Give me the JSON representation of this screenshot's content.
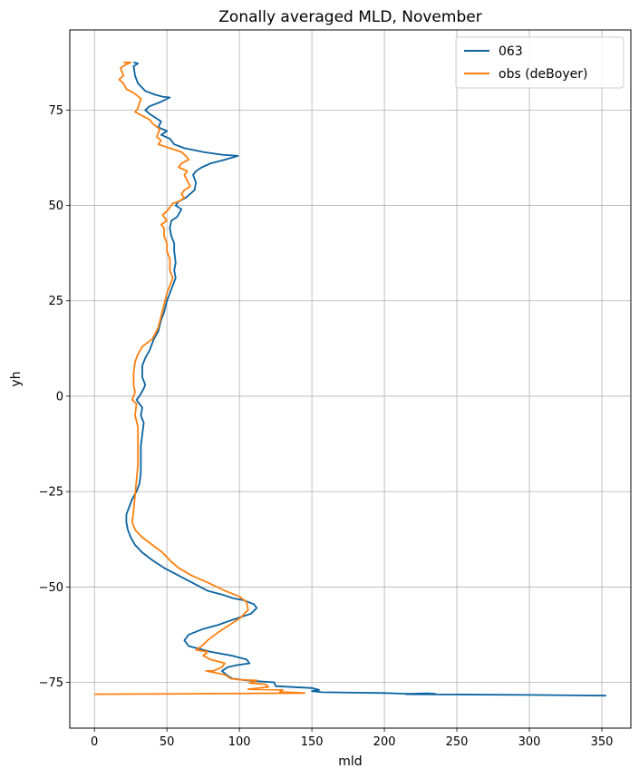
{
  "chart_data": {
    "type": "line",
    "title": "Zonally averaged MLD, November",
    "xlabel": "mld",
    "ylabel": "yh",
    "xlim": [
      -17,
      370
    ],
    "ylim": [
      -87,
      96
    ],
    "xticks": [
      0,
      50,
      100,
      150,
      200,
      250,
      300,
      350
    ],
    "yticks": [
      -75,
      -50,
      -25,
      0,
      25,
      50,
      75
    ],
    "grid": true,
    "legend_position": "top-right",
    "colors": {
      "063": "#0a63a0",
      "obs": "#ff7f0e"
    },
    "series": [
      {
        "name": "063",
        "color": "#0a63a0",
        "points": [
          [
            27,
            87.5
          ],
          [
            30,
            87.2
          ],
          [
            27,
            86.5
          ],
          [
            28,
            84
          ],
          [
            30,
            82
          ],
          [
            35,
            80
          ],
          [
            42,
            79
          ],
          [
            47,
            78.5
          ],
          [
            52,
            78.3
          ],
          [
            45,
            77
          ],
          [
            38,
            76
          ],
          [
            35,
            75
          ],
          [
            38,
            74
          ],
          [
            42,
            73
          ],
          [
            46,
            72
          ],
          [
            44,
            70.5
          ],
          [
            50,
            69.5
          ],
          [
            46,
            68.5
          ],
          [
            52,
            67.5
          ],
          [
            55,
            66
          ],
          [
            62,
            65
          ],
          [
            75,
            64
          ],
          [
            88,
            63.3
          ],
          [
            99,
            63
          ],
          [
            90,
            62
          ],
          [
            80,
            61
          ],
          [
            74,
            60
          ],
          [
            70,
            59
          ],
          [
            68,
            58
          ],
          [
            70,
            56
          ],
          [
            69,
            54
          ],
          [
            63,
            52
          ],
          [
            58,
            51
          ],
          [
            56,
            50
          ],
          [
            60,
            49
          ],
          [
            57,
            47
          ],
          [
            53,
            46
          ],
          [
            52,
            44
          ],
          [
            53,
            42
          ],
          [
            55,
            40
          ],
          [
            55,
            38
          ],
          [
            56,
            35
          ],
          [
            55,
            33
          ],
          [
            56,
            31
          ],
          [
            54,
            29
          ],
          [
            52,
            27
          ],
          [
            50,
            25
          ],
          [
            48,
            22
          ],
          [
            46,
            20
          ],
          [
            44,
            17
          ],
          [
            41,
            15
          ],
          [
            38,
            12
          ],
          [
            35,
            10
          ],
          [
            33,
            8
          ],
          [
            33,
            5
          ],
          [
            35,
            3
          ],
          [
            34,
            2
          ],
          [
            31,
            0
          ],
          [
            29,
            -1
          ],
          [
            33,
            -3
          ],
          [
            32,
            -5
          ],
          [
            34,
            -7
          ],
          [
            33,
            -10
          ],
          [
            32,
            -13
          ],
          [
            32,
            -16
          ],
          [
            32,
            -20
          ],
          [
            31,
            -23
          ],
          [
            29,
            -25
          ],
          [
            26,
            -27
          ],
          [
            24,
            -29
          ],
          [
            22,
            -31
          ],
          [
            22,
            -33
          ],
          [
            23,
            -35
          ],
          [
            25,
            -37
          ],
          [
            28,
            -39
          ],
          [
            33,
            -41
          ],
          [
            40,
            -43
          ],
          [
            48,
            -45
          ],
          [
            58,
            -47
          ],
          [
            68,
            -49
          ],
          [
            78,
            -51
          ],
          [
            88,
            -52
          ],
          [
            96,
            -53
          ],
          [
            103,
            -53.5
          ],
          [
            110,
            -54.5
          ],
          [
            112,
            -55.5
          ],
          [
            108,
            -57
          ],
          [
            96,
            -58.5
          ],
          [
            85,
            -60
          ],
          [
            75,
            -61
          ],
          [
            65,
            -62.5
          ],
          [
            62,
            -64
          ],
          [
            65,
            -65.5
          ],
          [
            80,
            -67
          ],
          [
            95,
            -68
          ],
          [
            105,
            -69
          ],
          [
            107,
            -70
          ],
          [
            98,
            -70.5
          ],
          [
            92,
            -71
          ],
          [
            88,
            -72
          ],
          [
            91,
            -73
          ],
          [
            95,
            -74
          ],
          [
            105,
            -74.5
          ],
          [
            124,
            -75
          ],
          [
            125,
            -76
          ],
          [
            150,
            -76.5
          ],
          [
            155,
            -77
          ],
          [
            150,
            -77.3
          ],
          [
            157,
            -77.6
          ],
          [
            200,
            -77.8
          ],
          [
            216,
            -78
          ],
          [
            230,
            -77.9
          ],
          [
            235,
            -78
          ],
          [
            215,
            -78.1
          ],
          [
            300,
            -78.3
          ],
          [
            353,
            -78.5
          ]
        ]
      },
      {
        "name": "obs (deBoyer)",
        "color": "#ff7f0e",
        "points": [
          [
            20,
            87.5
          ],
          [
            25,
            87.5
          ],
          [
            22,
            87
          ],
          [
            18,
            86
          ],
          [
            20,
            84
          ],
          [
            17,
            83
          ],
          [
            20,
            82
          ],
          [
            22,
            80.5
          ],
          [
            27,
            79.5
          ],
          [
            32,
            78
          ],
          [
            30,
            75.5
          ],
          [
            28,
            74.5
          ],
          [
            33,
            73.5
          ],
          [
            38,
            72.5
          ],
          [
            40,
            71.5
          ],
          [
            45,
            70
          ],
          [
            43,
            68
          ],
          [
            46,
            67
          ],
          [
            44,
            66
          ],
          [
            52,
            65
          ],
          [
            60,
            64
          ],
          [
            63,
            63
          ],
          [
            65,
            62
          ],
          [
            60,
            61
          ],
          [
            58,
            60
          ],
          [
            64,
            59
          ],
          [
            62,
            58
          ],
          [
            64,
            56.5
          ],
          [
            66,
            55
          ],
          [
            62,
            54
          ],
          [
            60,
            53
          ],
          [
            62,
            52
          ],
          [
            58,
            51
          ],
          [
            54,
            50.5
          ],
          [
            52,
            49.5
          ],
          [
            50,
            48.5
          ],
          [
            47,
            47.5
          ],
          [
            50,
            46
          ],
          [
            46,
            45
          ],
          [
            48,
            44
          ],
          [
            48,
            42
          ],
          [
            50,
            40
          ],
          [
            50,
            38
          ],
          [
            52,
            36
          ],
          [
            52,
            33
          ],
          [
            54,
            31
          ],
          [
            52,
            29
          ],
          [
            50,
            27
          ],
          [
            48,
            24
          ],
          [
            46,
            21
          ],
          [
            44,
            18
          ],
          [
            40,
            15
          ],
          [
            33,
            13
          ],
          [
            30,
            11
          ],
          [
            28,
            9
          ],
          [
            27,
            6
          ],
          [
            27,
            3
          ],
          [
            28,
            1
          ],
          [
            26,
            -1
          ],
          [
            29,
            -2
          ],
          [
            28,
            -5
          ],
          [
            30,
            -8
          ],
          [
            30,
            -11
          ],
          [
            30,
            -14
          ],
          [
            30,
            -18
          ],
          [
            29,
            -22
          ],
          [
            28,
            -26
          ],
          [
            27,
            -30
          ],
          [
            26,
            -33
          ],
          [
            28,
            -35
          ],
          [
            33,
            -37
          ],
          [
            40,
            -39
          ],
          [
            47,
            -41
          ],
          [
            52,
            -43
          ],
          [
            58,
            -45
          ],
          [
            67,
            -47
          ],
          [
            79,
            -49
          ],
          [
            90,
            -51
          ],
          [
            100,
            -52.5
          ],
          [
            105,
            -54
          ],
          [
            106,
            -56
          ],
          [
            101,
            -58
          ],
          [
            93,
            -60
          ],
          [
            85,
            -62
          ],
          [
            78,
            -64
          ],
          [
            74,
            -65.5
          ],
          [
            70,
            -66.5
          ],
          [
            78,
            -67
          ],
          [
            75,
            -68
          ],
          [
            80,
            -69
          ],
          [
            90,
            -70
          ],
          [
            88,
            -71
          ],
          [
            82,
            -72
          ],
          [
            77,
            -72
          ],
          [
            90,
            -73
          ],
          [
            94,
            -74
          ],
          [
            100,
            -74.3
          ],
          [
            112,
            -74.5
          ],
          [
            107,
            -75.2
          ],
          [
            118,
            -75.5
          ],
          [
            120,
            -76.2
          ],
          [
            106,
            -76.8
          ],
          [
            130,
            -77
          ],
          [
            128,
            -77.5
          ],
          [
            145,
            -77.8
          ],
          [
            70,
            -78
          ],
          [
            0,
            -78.1
          ]
        ]
      }
    ]
  }
}
